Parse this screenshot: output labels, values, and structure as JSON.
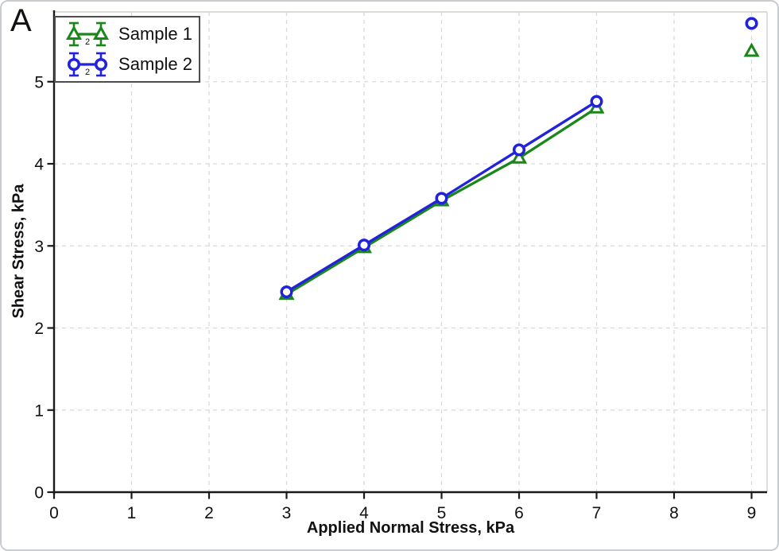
{
  "panel_label": "A",
  "colors": {
    "sample1_green": "#1a871a",
    "sample2_blue": "#2222dd",
    "gridline": "#d9d9d9",
    "plot_frame": "#cfcfcf",
    "axis": "#1a1a1a",
    "text": "#111111",
    "legend_border": "#4d4d4d",
    "marker_fill": "#ffffff"
  },
  "legend": {
    "subscript_label": "2"
  },
  "chart_data": {
    "type": "line",
    "title": "",
    "xlabel": "Applied Normal Stress, kPa",
    "ylabel": "Shear Stress, kPa",
    "xlim": [
      0,
      9.2
    ],
    "ylim": [
      0,
      5.85
    ],
    "xticks": [
      0,
      1,
      2,
      3,
      4,
      5,
      6,
      7,
      8,
      9
    ],
    "yticks": [
      0,
      1,
      2,
      3,
      4,
      5
    ],
    "grid": "dashed-major-both",
    "legend_position": "top-left",
    "series": [
      {
        "name": "Sample 1",
        "marker": "triangle",
        "color": "#1a871a",
        "x": [
          3,
          4,
          5,
          6,
          7,
          9
        ],
        "y": [
          2.41,
          2.98,
          3.55,
          4.07,
          4.68,
          5.37
        ],
        "line_connects_first_n": 5
      },
      {
        "name": "Sample 2",
        "marker": "circle",
        "color": "#2222dd",
        "x": [
          3,
          4,
          5,
          6,
          7,
          9
        ],
        "y": [
          2.44,
          3.01,
          3.58,
          4.17,
          4.76,
          5.71
        ],
        "line_connects_first_n": 5
      }
    ]
  }
}
